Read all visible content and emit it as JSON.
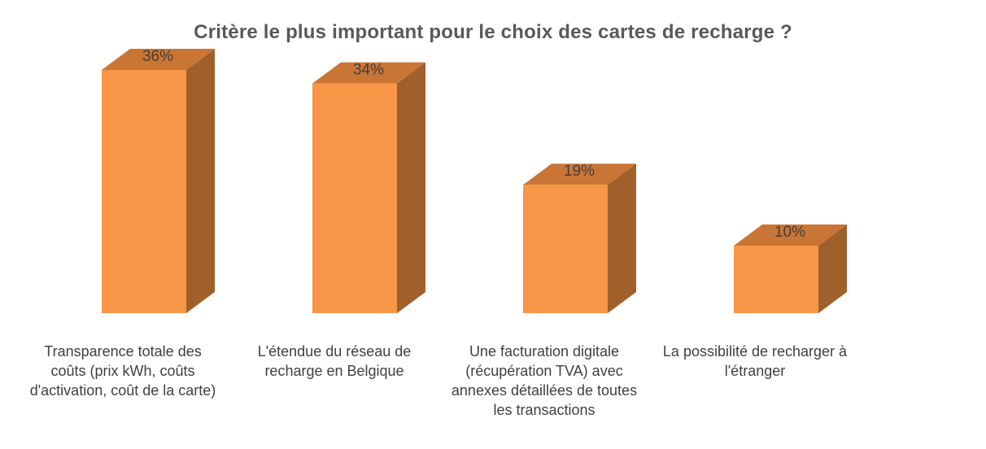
{
  "chart_data": {
    "type": "bar",
    "title": "Critère le plus important pour le choix des cartes de recharge ?",
    "categories": [
      "Transparence totale des coûts (prix kWh, coûts d'activation, coût de la carte)",
      "L'étendue du réseau de recharge en Belgique",
      "Une facturation digitale (récupération TVA) avec annexes détaillées de toutes les transactions",
      "La possibilité de recharger à l'étranger"
    ],
    "values": [
      36,
      34,
      19,
      10
    ],
    "value_labels": [
      "36%",
      "34%",
      "19%",
      "10%"
    ],
    "ylim": [
      0,
      36
    ],
    "xlabel": "",
    "ylabel": "",
    "grid": false,
    "style": "3d-column",
    "colors": {
      "front": "#F79646",
      "side": "#A0602C",
      "top": "#C97535"
    }
  }
}
